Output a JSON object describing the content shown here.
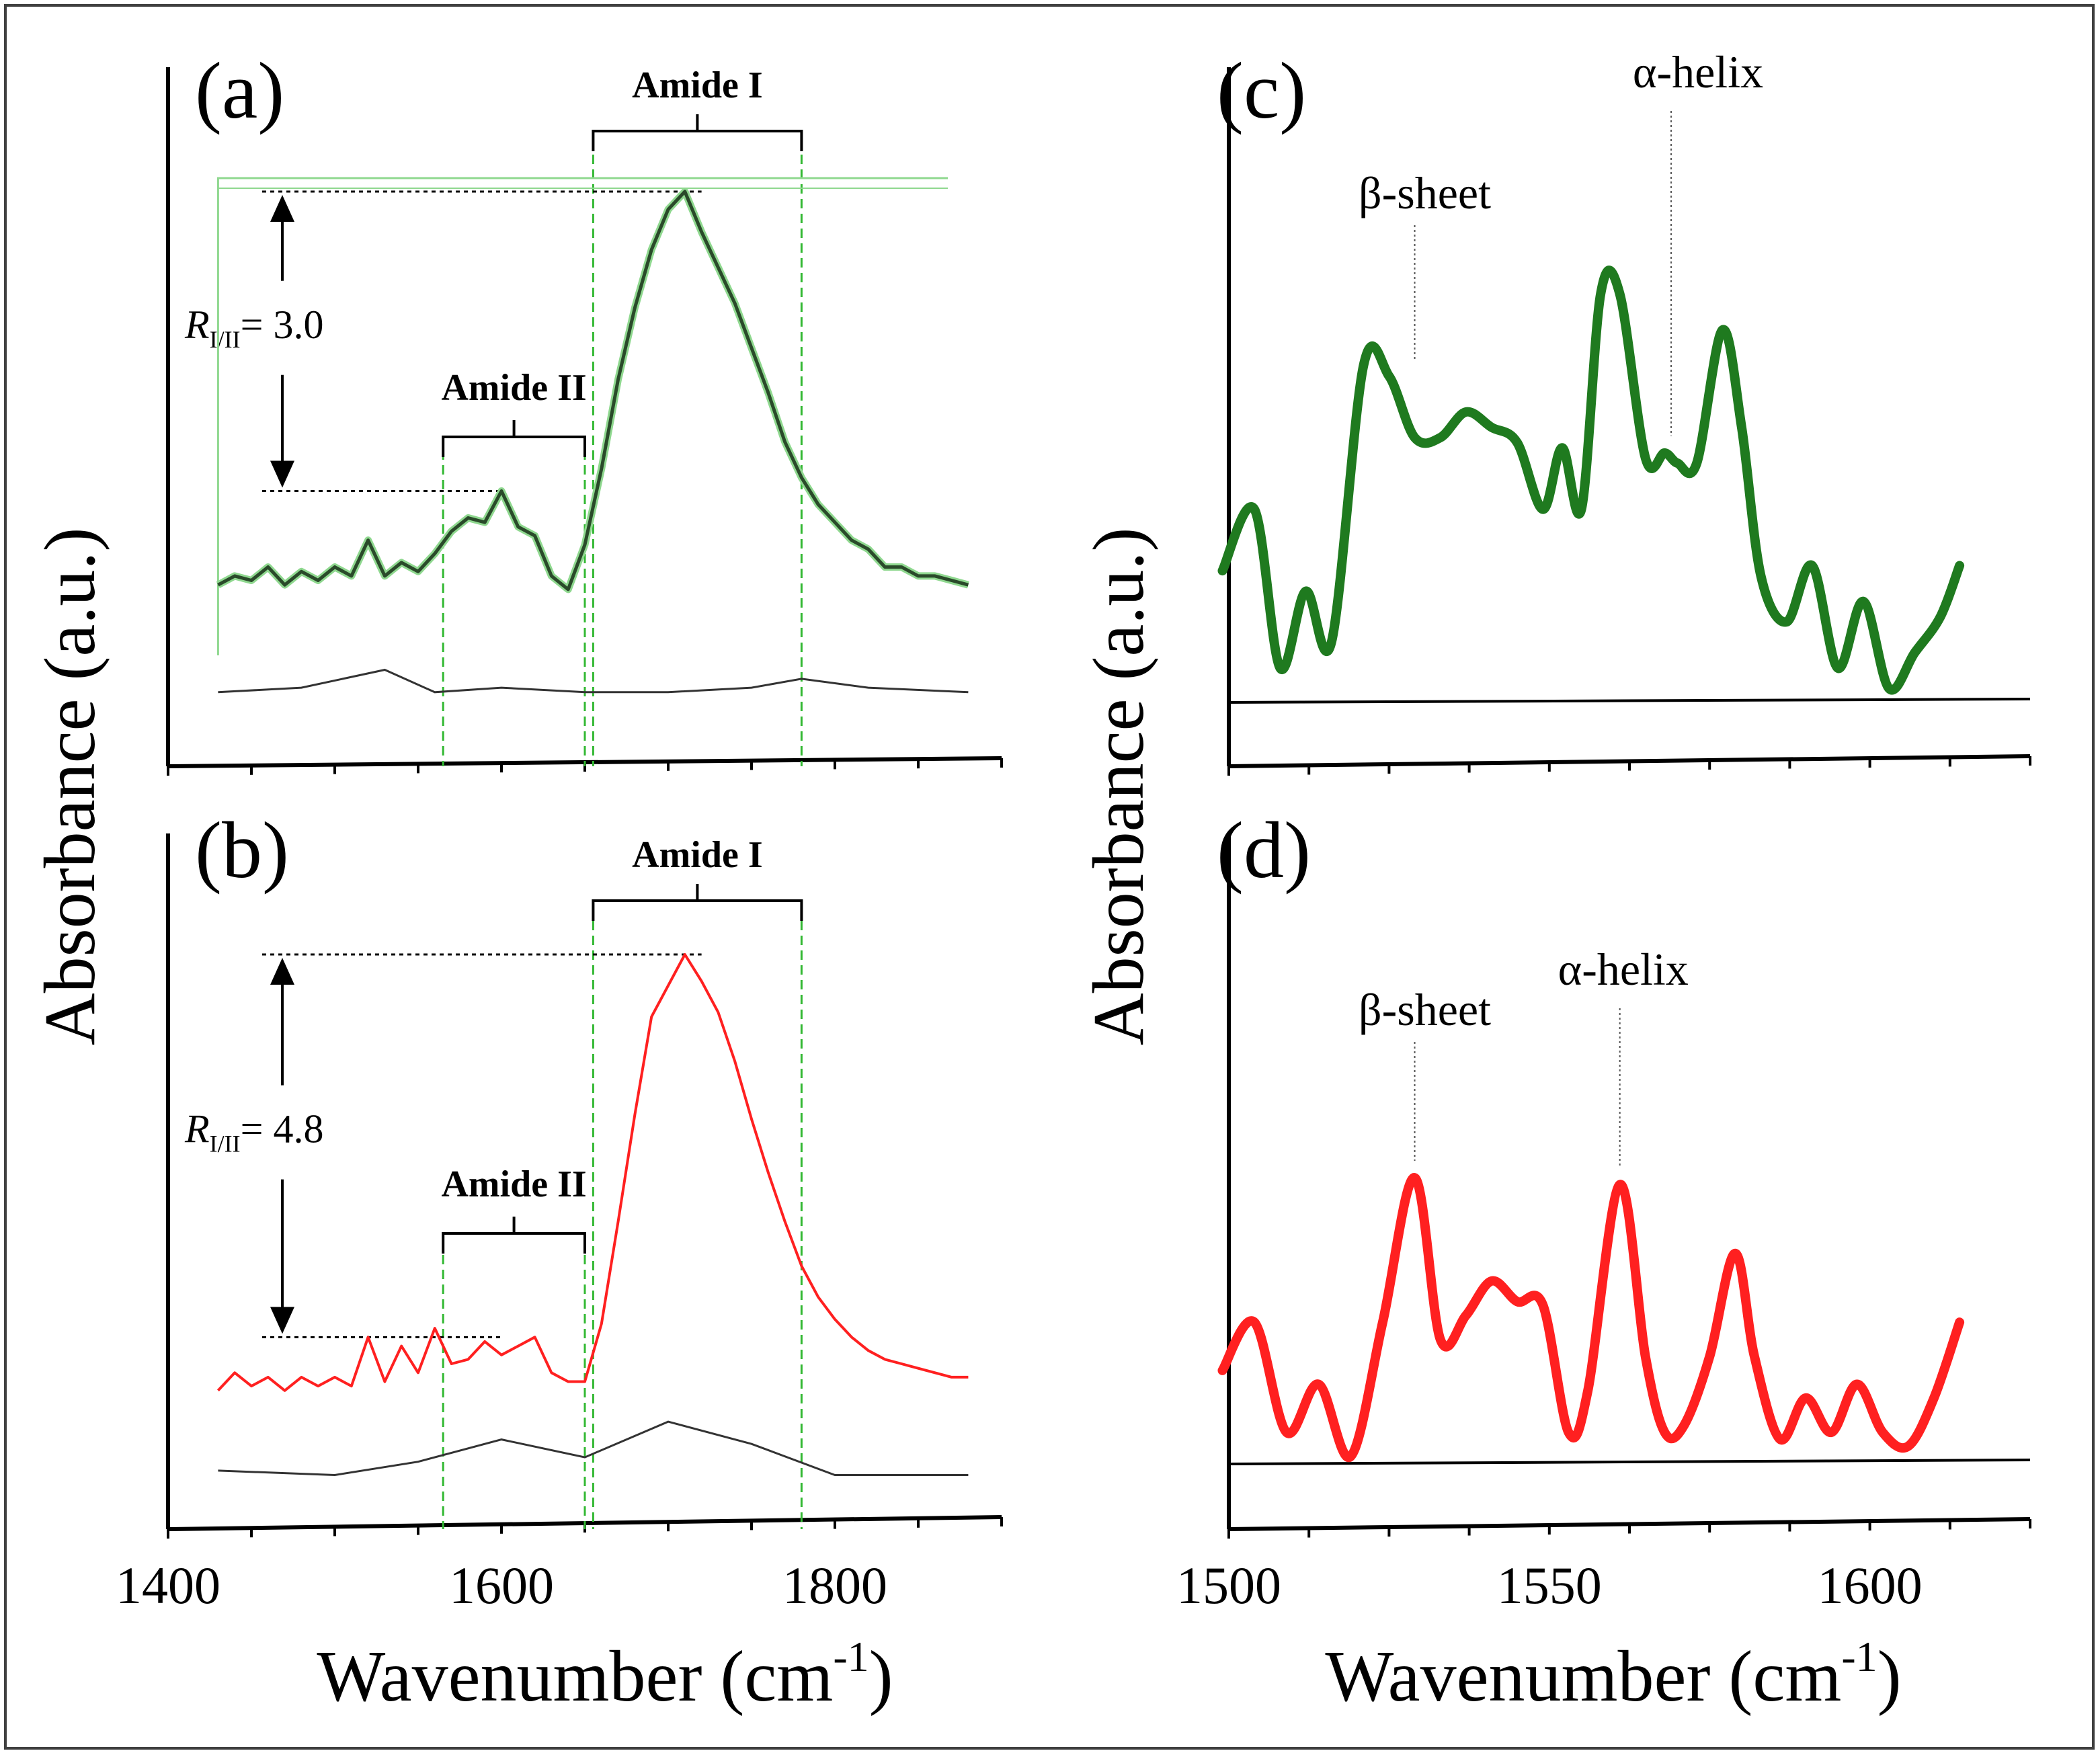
{
  "figure": {
    "border_color": "#404040"
  },
  "ui_colors": {
    "green": "#1f7a1f",
    "green_outline": "#2a4a2a",
    "green_halo": "#8fd88f",
    "red": "#ff2020",
    "guide_green": "#33b833",
    "axis": "#000000"
  },
  "labels": {
    "y_axis_left": "Absorbance (a.u.)",
    "y_axis_right": "Absorbance (a.u.)",
    "x_axis_left": "Wavenumber (cm",
    "x_axis_right": "Wavenumber (cm",
    "x_unit_sup": "-1",
    "x_unit_close": ")",
    "ratio_symbol": "R",
    "ratio_sub": "I/II"
  },
  "chart_data": [
    {
      "panel": "(a)",
      "type": "line",
      "xlim": [
        1400,
        1900
      ],
      "ticks": [
        1400,
        1600,
        1800
      ],
      "color": "#1f7a1f",
      "annotations": {
        "amide_I": "Amide I",
        "amide_II": "Amide II",
        "ratio": "= 3.0",
        "amide_I_range": [
          1655,
          1780
        ],
        "amide_II_range": [
          1565,
          1650
        ]
      },
      "series": [
        {
          "x": [
            1430,
            1440,
            1450,
            1460,
            1470,
            1480,
            1490,
            1500,
            1510,
            1520,
            1530,
            1540,
            1550,
            1560,
            1570,
            1580,
            1590,
            1600,
            1610,
            1620,
            1630,
            1640,
            1650,
            1660,
            1670,
            1680,
            1690,
            1700,
            1710,
            1720,
            1730,
            1740,
            1750,
            1760,
            1770,
            1780,
            1790,
            1800,
            1810,
            1820,
            1830,
            1840,
            1850,
            1860,
            1870,
            1880
          ],
          "y": [
            0.12,
            0.14,
            0.13,
            0.16,
            0.12,
            0.15,
            0.13,
            0.16,
            0.14,
            0.22,
            0.14,
            0.17,
            0.15,
            0.19,
            0.24,
            0.27,
            0.26,
            0.33,
            0.25,
            0.23,
            0.14,
            0.11,
            0.21,
            0.38,
            0.58,
            0.74,
            0.87,
            0.96,
            1.0,
            0.91,
            0.83,
            0.75,
            0.65,
            0.55,
            0.44,
            0.36,
            0.3,
            0.26,
            0.22,
            0.2,
            0.16,
            0.16,
            0.14,
            0.14,
            0.13,
            0.12
          ]
        },
        {
          "x": [
            1430,
            1480,
            1530,
            1560,
            1600,
            1650,
            1700,
            1750,
            1780,
            1820,
            1880
          ],
          "y": [
            -0.12,
            -0.11,
            -0.07,
            -0.12,
            -0.11,
            -0.12,
            -0.12,
            -0.11,
            -0.09,
            -0.11,
            -0.12
          ]
        }
      ]
    },
    {
      "panel": "(b)",
      "type": "line",
      "xlim": [
        1400,
        1900
      ],
      "ticks": [
        1400,
        1600,
        1800
      ],
      "color": "#ff2020",
      "annotations": {
        "amide_I": "Amide I",
        "amide_II": "Amide II",
        "ratio": "= 4.8",
        "amide_I_range": [
          1655,
          1780
        ],
        "amide_II_range": [
          1565,
          1650
        ]
      },
      "series": [
        {
          "x": [
            1430,
            1440,
            1450,
            1460,
            1470,
            1480,
            1490,
            1500,
            1510,
            1520,
            1530,
            1540,
            1550,
            1560,
            1570,
            1580,
            1590,
            1600,
            1610,
            1620,
            1630,
            1640,
            1650,
            1660,
            1670,
            1680,
            1690,
            1700,
            1710,
            1720,
            1730,
            1740,
            1750,
            1760,
            1770,
            1780,
            1790,
            1800,
            1810,
            1820,
            1830,
            1840,
            1850,
            1860,
            1870,
            1880
          ],
          "y": [
            0.02,
            0.06,
            0.03,
            0.05,
            0.02,
            0.05,
            0.03,
            0.05,
            0.03,
            0.14,
            0.04,
            0.12,
            0.06,
            0.16,
            0.08,
            0.09,
            0.13,
            0.1,
            0.12,
            0.14,
            0.06,
            0.04,
            0.04,
            0.17,
            0.4,
            0.64,
            0.86,
            0.93,
            1.0,
            0.94,
            0.87,
            0.76,
            0.63,
            0.51,
            0.4,
            0.3,
            0.23,
            0.18,
            0.14,
            0.11,
            0.09,
            0.08,
            0.07,
            0.06,
            0.05,
            0.05
          ]
        },
        {
          "x": [
            1430,
            1500,
            1550,
            1600,
            1650,
            1700,
            1750,
            1800,
            1850,
            1880
          ],
          "y": [
            -0.16,
            -0.17,
            -0.14,
            -0.09,
            -0.13,
            -0.05,
            -0.1,
            -0.17,
            -0.17,
            -0.17
          ]
        }
      ]
    },
    {
      "panel": "(c)",
      "type": "line",
      "xlim": [
        1500,
        1625
      ],
      "ticks": [
        1500,
        1550,
        1600
      ],
      "color": "#1f7a1f",
      "annotations": {
        "beta_sheet": "β-sheet",
        "alpha_helix": "α-helix",
        "beta_x": 1529,
        "alpha_x": 1569
      },
      "series": [
        {
          "x": [
            1499,
            1504,
            1508,
            1512,
            1516,
            1521,
            1525,
            1529,
            1533,
            1537,
            1541,
            1545,
            1549,
            1552,
            1555,
            1558,
            1561,
            1565,
            1568,
            1570,
            1573,
            1577,
            1580,
            1583,
            1587,
            1591,
            1595,
            1599,
            1603,
            1607,
            1611,
            1614
          ],
          "y": [
            0.24,
            0.36,
            0.05,
            0.2,
            0.1,
            0.64,
            0.62,
            0.5,
            0.5,
            0.55,
            0.52,
            0.49,
            0.36,
            0.48,
            0.36,
            0.78,
            0.78,
            0.46,
            0.47,
            0.45,
            0.45,
            0.71,
            0.52,
            0.23,
            0.14,
            0.25,
            0.05,
            0.18,
            0.01,
            0.08,
            0.15,
            0.25
          ]
        }
      ]
    },
    {
      "panel": "(d)",
      "type": "line",
      "xlim": [
        1500,
        1625
      ],
      "ticks": [
        1500,
        1550,
        1600
      ],
      "color": "#ff2020",
      "annotations": {
        "beta_sheet": "β-sheet",
        "alpha_helix": "α-helix",
        "beta_x": 1529,
        "alpha_x": 1561
      },
      "series": [
        {
          "x": [
            1499,
            1504,
            1509,
            1514,
            1519,
            1524,
            1529,
            1533,
            1537,
            1541,
            1545,
            1549,
            1553,
            1556,
            1561,
            1565,
            1568,
            1571,
            1575,
            1579,
            1582,
            1586,
            1590,
            1594,
            1598,
            1602,
            1606,
            1610,
            1614
          ],
          "y": [
            0.26,
            0.4,
            0.08,
            0.22,
            0.01,
            0.4,
            0.82,
            0.35,
            0.42,
            0.52,
            0.46,
            0.45,
            0.08,
            0.2,
            0.8,
            0.3,
            0.08,
            0.1,
            0.3,
            0.6,
            0.3,
            0.06,
            0.18,
            0.08,
            0.22,
            0.08,
            0.04,
            0.18,
            0.4
          ]
        }
      ]
    }
  ]
}
